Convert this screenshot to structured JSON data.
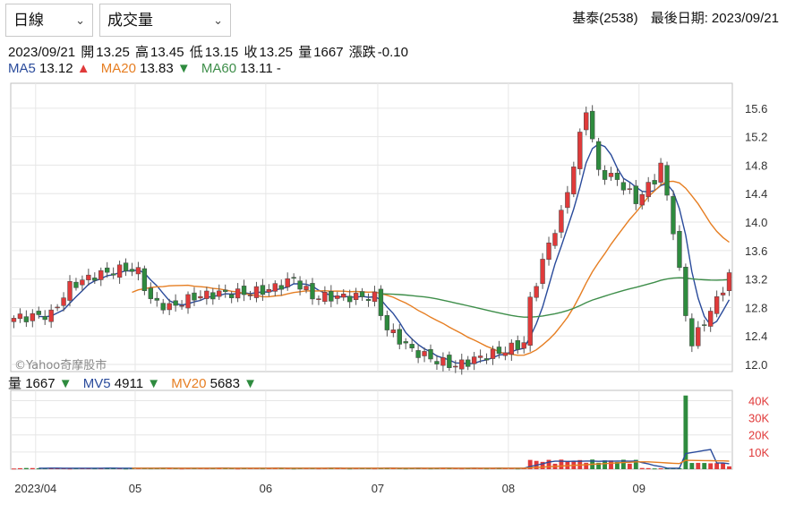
{
  "controls": {
    "period_select": {
      "label": "日線",
      "icon": "chevron-down-icon"
    },
    "indicator_select": {
      "label": "成交量",
      "icon": "chevron-down-icon"
    }
  },
  "header": {
    "stock": "基泰(2538)",
    "last_date_label": "最後日期:",
    "last_date": "2023/09/21"
  },
  "quote": {
    "date": "2023/09/21",
    "open_label": "開",
    "open": "13.25",
    "high_label": "高",
    "high": "13.45",
    "low_label": "低",
    "low": "13.15",
    "close_label": "收",
    "close": "13.25",
    "volume_label": "量",
    "volume": "1667",
    "change_label": "漲跌",
    "change": "-0.10"
  },
  "ma_legend": [
    {
      "name": "MA5",
      "value": "13.12",
      "trend": "▲",
      "color": "#2a4b9b",
      "trend_color": "#e03a3a"
    },
    {
      "name": "MA20",
      "value": "13.83",
      "trend": "▼",
      "color": "#e67e22",
      "trend_color": "#2e8b3e"
    },
    {
      "name": "MA60",
      "value": "13.11 -",
      "trend": "",
      "color": "#3e8e4a",
      "trend_color": "#2e8b3e"
    }
  ],
  "vol_legend": [
    {
      "name": "量",
      "value": "1667",
      "trend": "▼",
      "color": "#111111",
      "trend_color": "#2e8b3e"
    },
    {
      "name": "MV5",
      "value": "4911",
      "trend": "▼",
      "color": "#2a4b9b",
      "trend_color": "#2e8b3e"
    },
    {
      "name": "MV20",
      "value": "5683",
      "trend": "▼",
      "color": "#e67e22",
      "trend_color": "#2e8b3e"
    }
  ],
  "watermark": "©Yahoo奇摩股市",
  "colors": {
    "up": "#e03a3a",
    "down": "#2e8b3e",
    "ma5": "#2a4b9b",
    "ma20": "#e67e22",
    "ma60": "#3e8e4a",
    "grid": "#e6e6e6"
  },
  "chart_data": {
    "type": "candlestick",
    "x_ticks": [
      "2023/04",
      "05",
      "06",
      "07",
      "08",
      "09"
    ],
    "price_axis": {
      "ticks": [
        15.6,
        15.2,
        14.8,
        14.4,
        14.0,
        13.6,
        13.2,
        12.8,
        12.4,
        12.0
      ],
      "ylim": [
        11.9,
        15.95
      ]
    },
    "volume_axis": {
      "ticks": [
        "40K",
        "30K",
        "20K",
        "10K"
      ],
      "tick_values": [
        40000,
        30000,
        20000,
        10000
      ],
      "ylim": [
        0,
        46000
      ]
    },
    "anchors": {
      "start": 12.65,
      "end": 13.25
    }
  }
}
